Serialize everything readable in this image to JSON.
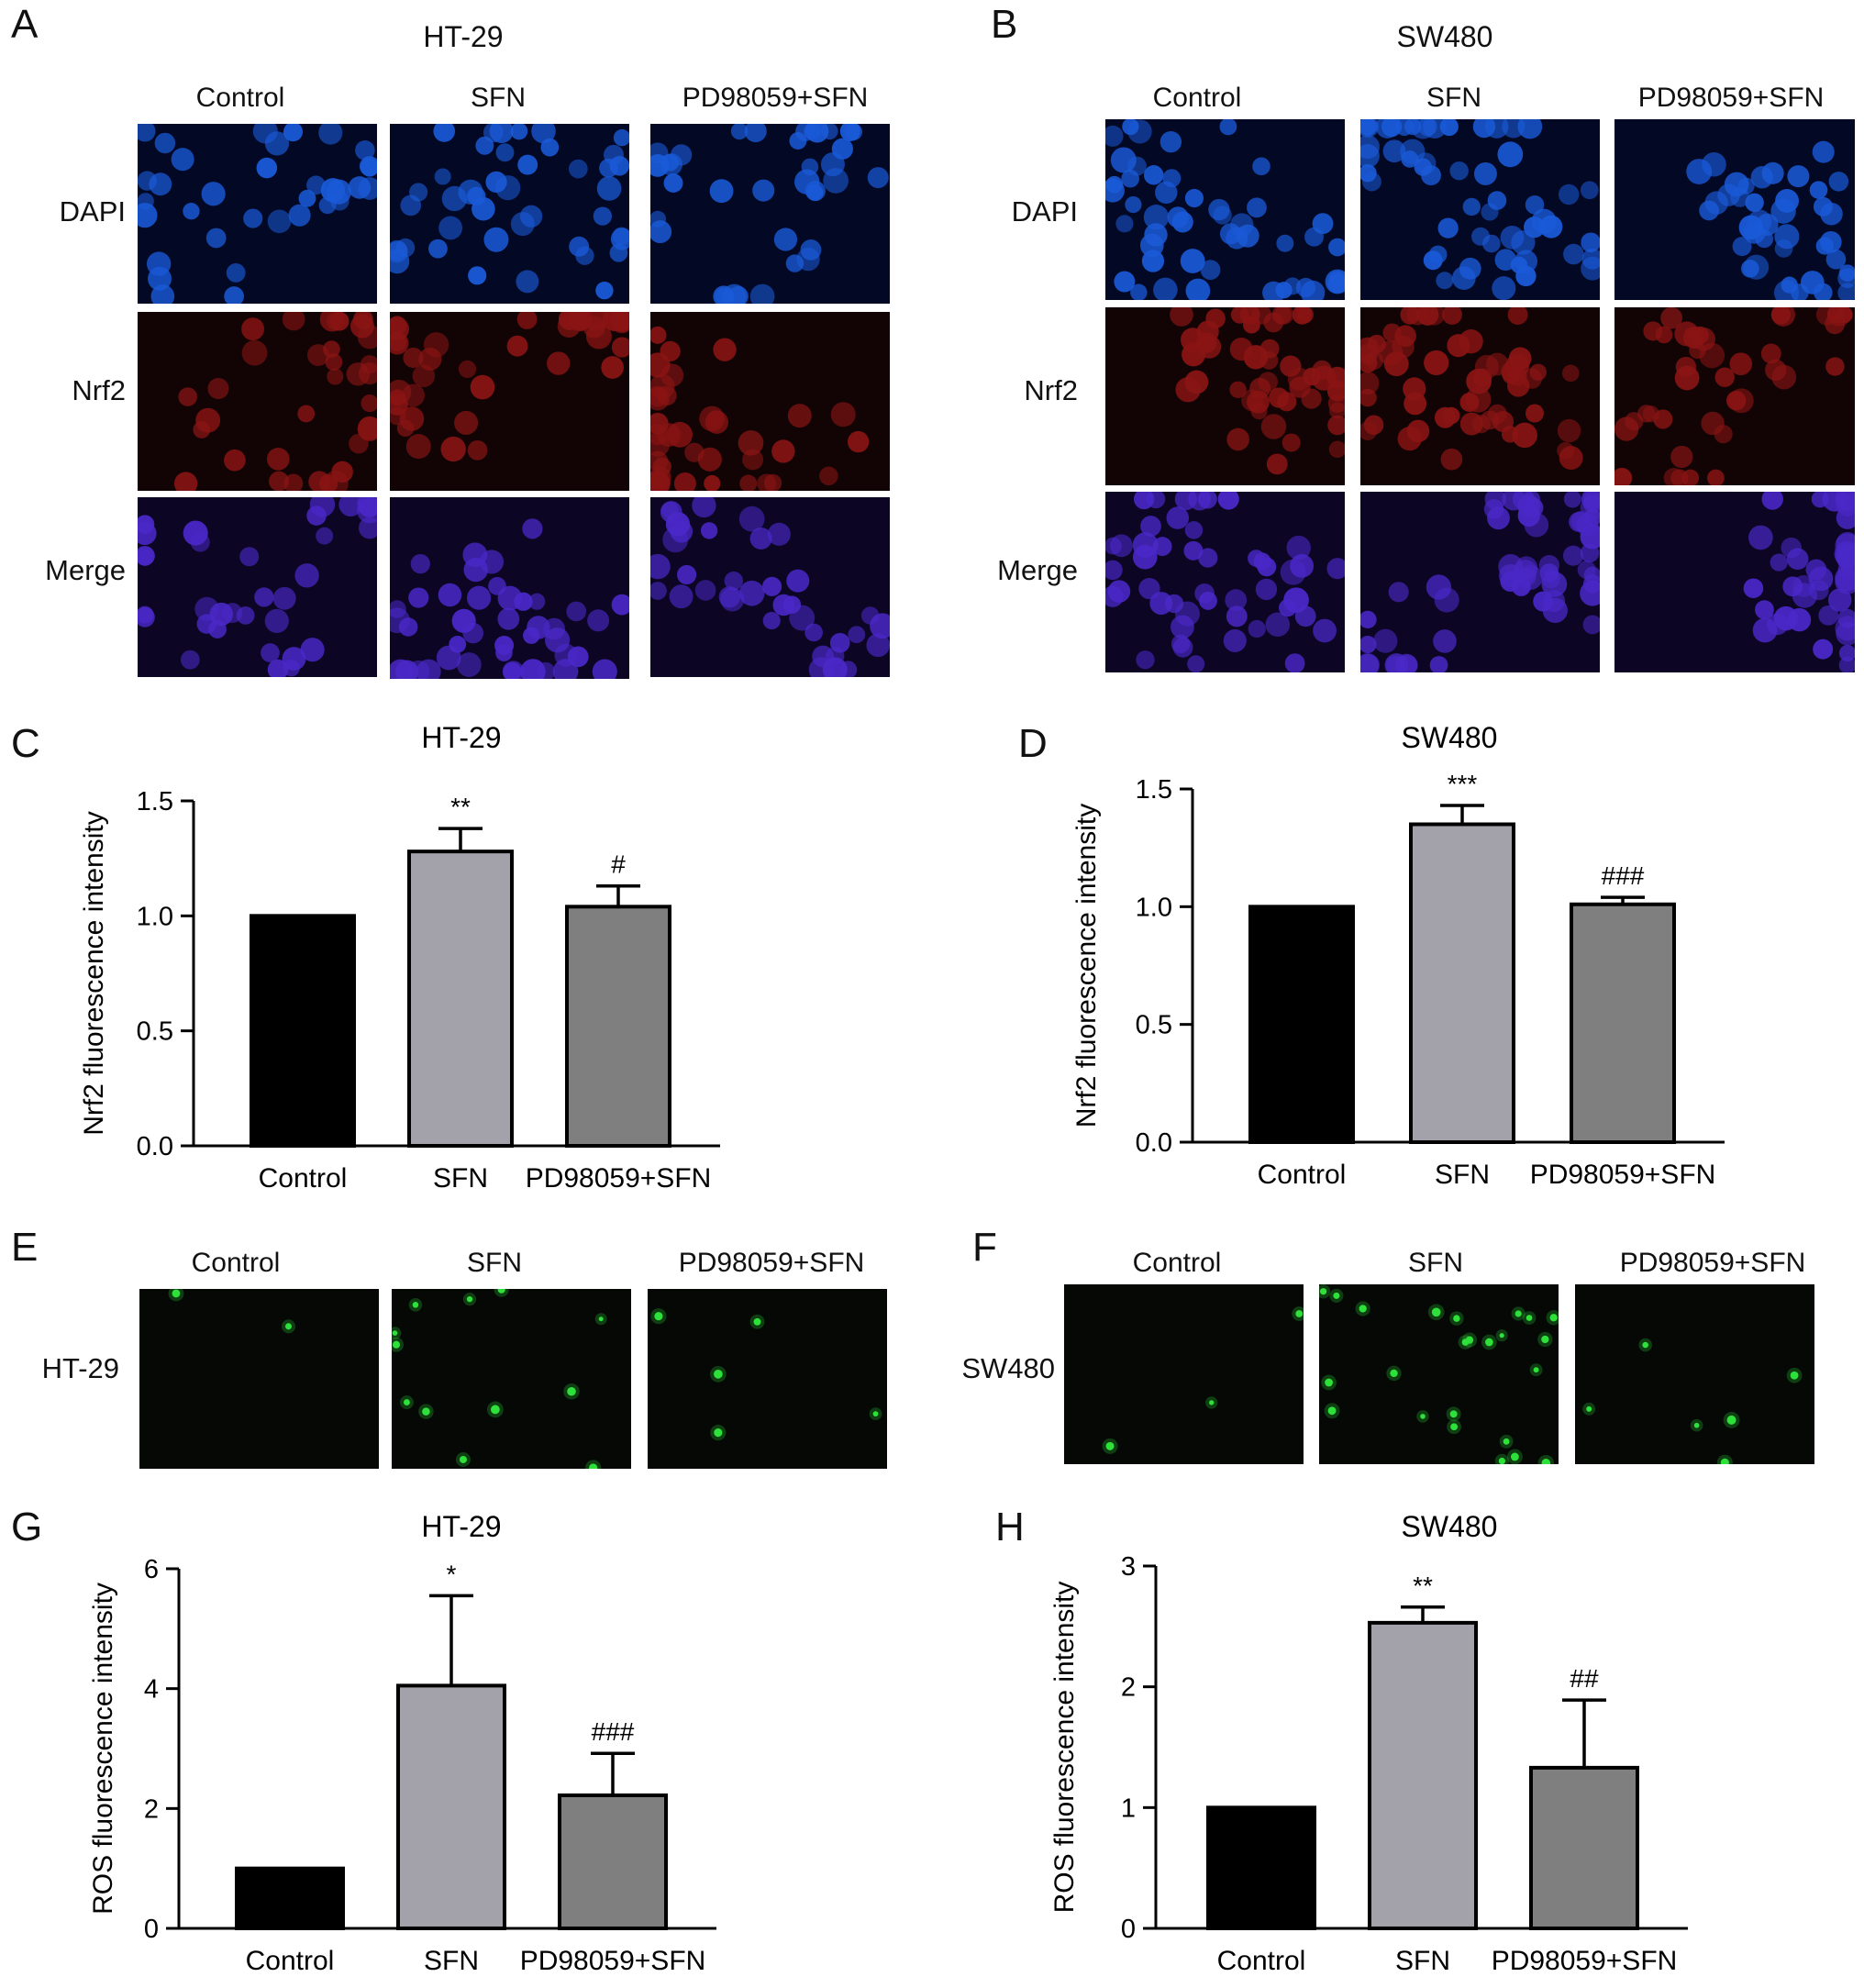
{
  "panels": {
    "A": {
      "letter": "A",
      "title": "HT-29",
      "columns": [
        "Control",
        "SFN",
        "PD98059+SFN"
      ],
      "rows": [
        "DAPI",
        "Nrf2",
        "Merge"
      ]
    },
    "B": {
      "letter": "B",
      "title": "SW480",
      "columns": [
        "Control",
        "SFN",
        "PD98059+SFN"
      ],
      "rows": [
        "DAPI",
        "Nrf2",
        "Merge"
      ]
    },
    "C": {
      "letter": "C"
    },
    "D": {
      "letter": "D"
    },
    "E": {
      "letter": "E",
      "columns": [
        "Control",
        "SFN",
        "PD98059+SFN"
      ],
      "row": "HT-29"
    },
    "F": {
      "letter": "F",
      "columns": [
        "Control",
        "SFN",
        "PD98059+SFN"
      ],
      "row": "SW480"
    },
    "G": {
      "letter": "G"
    },
    "H": {
      "letter": "H"
    }
  },
  "colors": {
    "control_bar": "#000000",
    "sfn_bar": "#a3a2ab",
    "pd_bar": "#7f7f7f",
    "dapi": "#1a5ad8",
    "nrf2": "#8a1414",
    "merge": "#4a28c8",
    "ros": "#2ee03a"
  },
  "chart_data": [
    {
      "id": "C",
      "type": "bar",
      "title": "HT-29",
      "categories": [
        "Control",
        "SFN",
        "PD98059+SFN"
      ],
      "values": [
        1.0,
        1.28,
        1.04
      ],
      "errors": [
        0,
        0.1,
        0.09
      ],
      "annotations": [
        "",
        "**",
        "#"
      ],
      "ylabel": "Nrf2 fluorescence intensity",
      "ylim": [
        0,
        1.5
      ],
      "yticks": [
        "0.0",
        "0.5",
        "1.0",
        "1.5"
      ],
      "tick_values": [
        0,
        0.5,
        1.0,
        1.5
      ]
    },
    {
      "id": "D",
      "type": "bar",
      "title": "SW480",
      "categories": [
        "Control",
        "SFN",
        "PD98059+SFN"
      ],
      "values": [
        1.0,
        1.35,
        1.01
      ],
      "errors": [
        0,
        0.08,
        0.03
      ],
      "annotations": [
        "",
        "***",
        "###"
      ],
      "ylabel": "Nrf2 fluorescence intensity",
      "ylim": [
        0,
        1.5
      ],
      "yticks": [
        "0.0",
        "0.5",
        "1.0",
        "1.5"
      ],
      "tick_values": [
        0,
        0.5,
        1.0,
        1.5
      ]
    },
    {
      "id": "G",
      "type": "bar",
      "title": "HT-29",
      "categories": [
        "Control",
        "SFN",
        "PD98059+SFN"
      ],
      "values": [
        1.0,
        4.05,
        2.22
      ],
      "errors": [
        0,
        1.5,
        0.7
      ],
      "annotations": [
        "",
        "*",
        "###"
      ],
      "ylabel": "ROS fluorescence intensity",
      "ylim": [
        0,
        6
      ],
      "yticks": [
        "0",
        "2",
        "4",
        "6"
      ],
      "tick_values": [
        0,
        2,
        4,
        6
      ]
    },
    {
      "id": "H",
      "type": "bar",
      "title": "SW480",
      "categories": [
        "Control",
        "SFN",
        "PD98059+SFN"
      ],
      "values": [
        1.0,
        2.53,
        1.33
      ],
      "errors": [
        0,
        0.13,
        0.56
      ],
      "annotations": [
        "",
        "**",
        "##"
      ],
      "ylabel": "ROS fluorescence intensity",
      "ylim": [
        0,
        3
      ],
      "yticks": [
        "0",
        "1",
        "2",
        "3"
      ],
      "tick_values": [
        0,
        1,
        2,
        3
      ]
    }
  ]
}
